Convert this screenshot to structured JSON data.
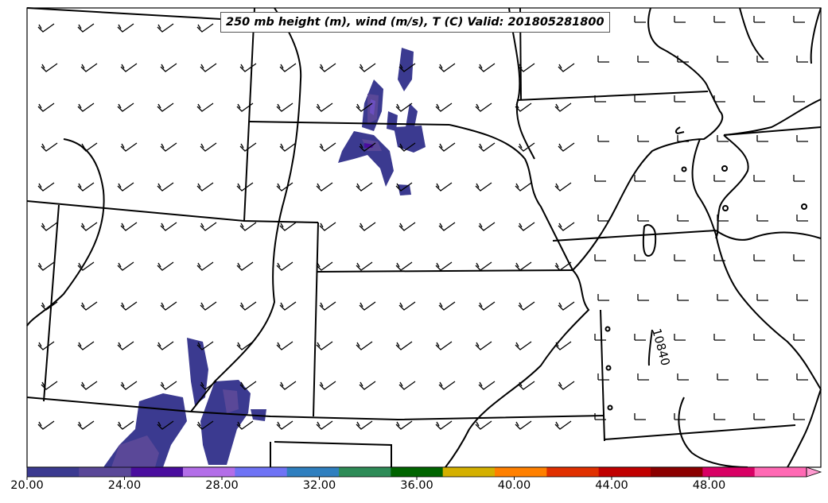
{
  "title": "250 mb height (m), wind (m/s), T (C) Valid: 201805281800",
  "contour_label": "10840",
  "colorbar": {
    "tick_labels": [
      "20.00",
      "24.00",
      "28.00",
      "32.00",
      "36.00",
      "40.00",
      "44.00",
      "48.00"
    ],
    "tick_values": [
      20,
      24,
      28,
      32,
      36,
      40,
      44,
      48
    ],
    "min": 20,
    "max": 52,
    "extend": "max",
    "colors": [
      "#3b3a90",
      "#5a4898",
      "#4a0d9e",
      "#b36ee8",
      "#6f73f5",
      "#2f7fbf",
      "#2e8b57",
      "#006400",
      "#d4b000",
      "#ff8000",
      "#e03000",
      "#c00000",
      "#8b0000",
      "#d80064",
      "#ff69b4",
      "#ff9ad0"
    ]
  }
}
